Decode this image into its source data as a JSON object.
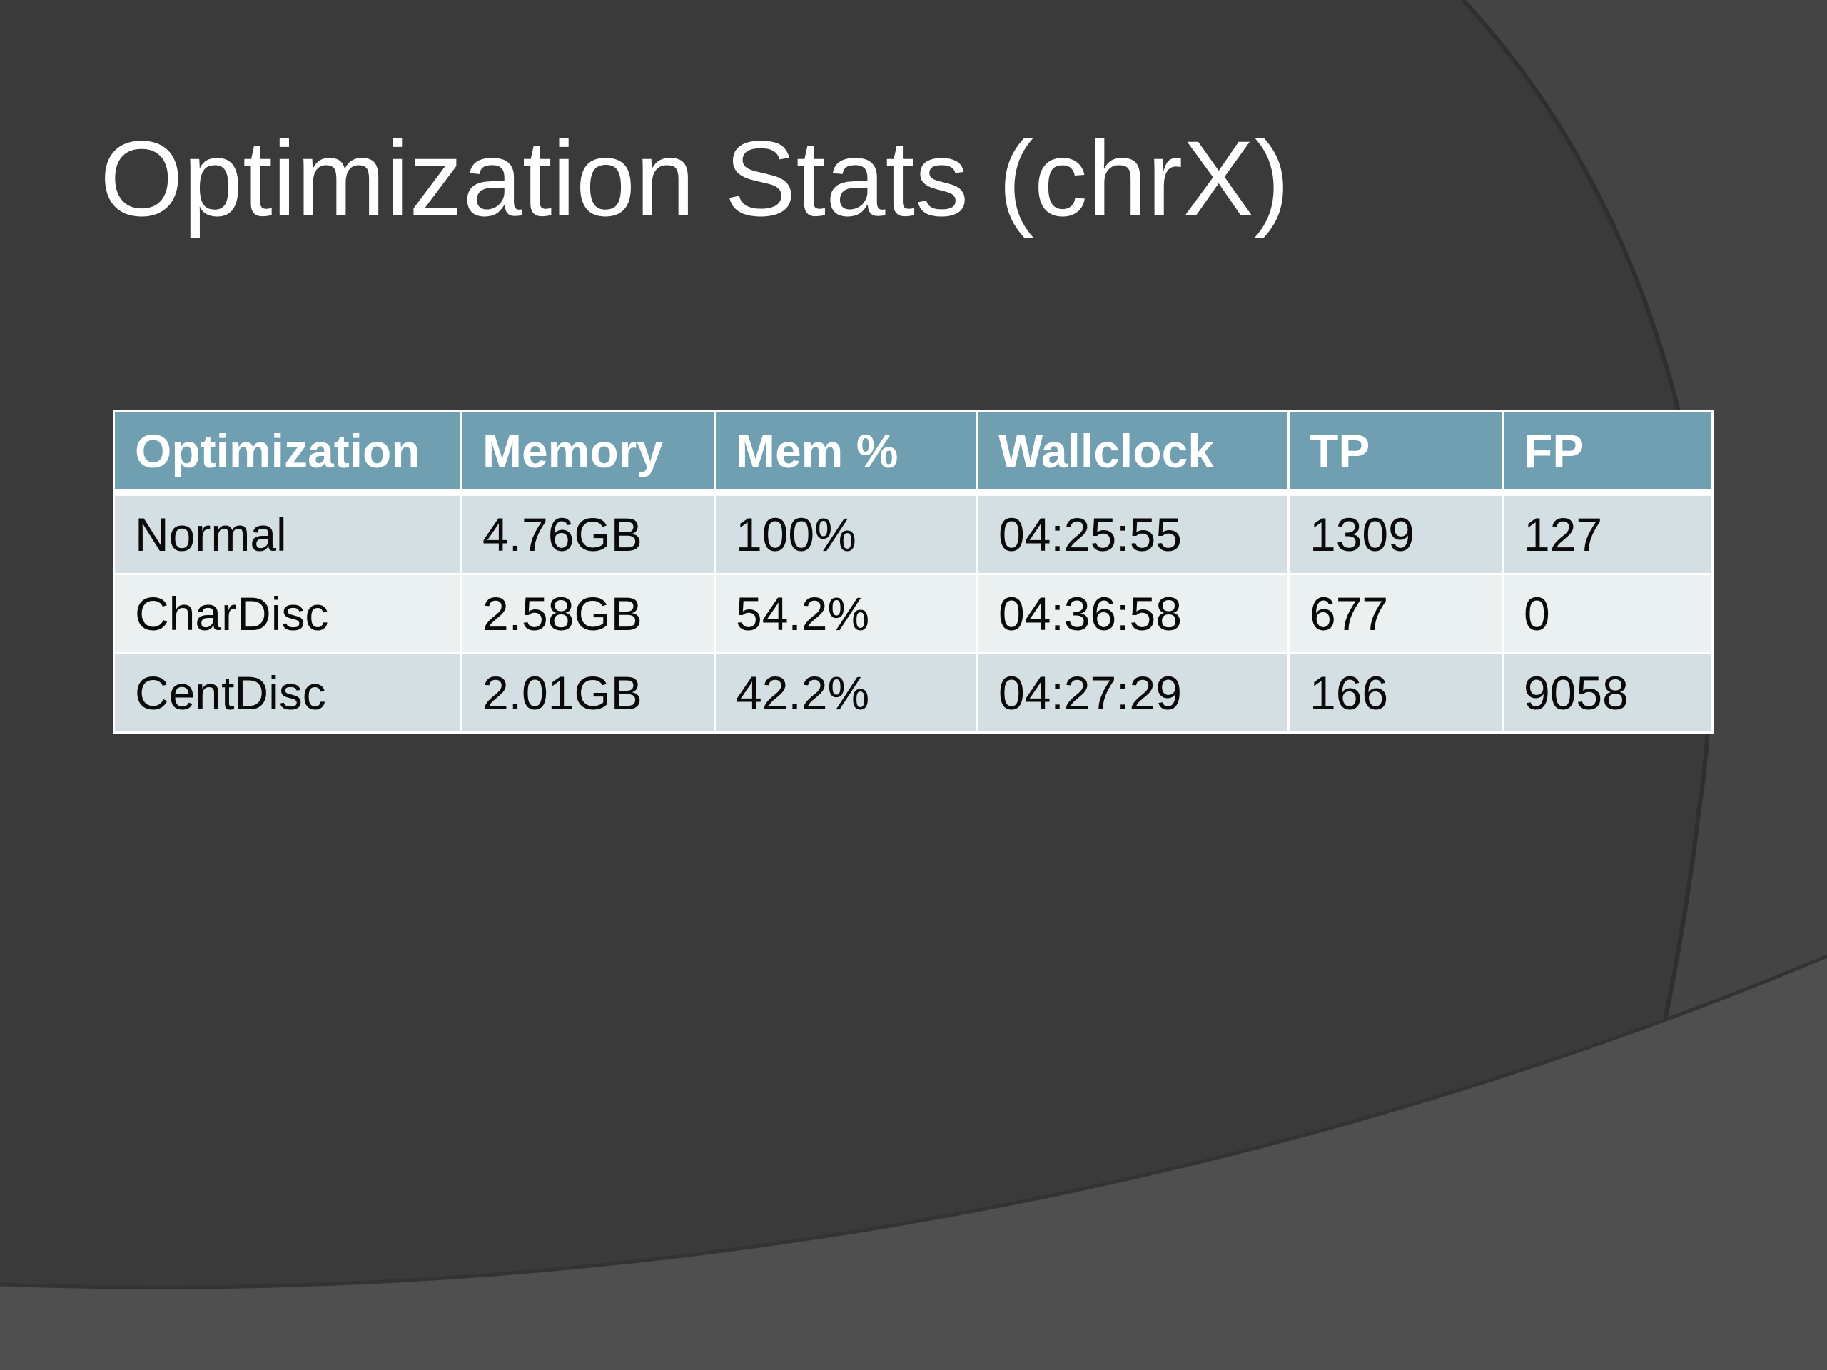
{
  "slide": {
    "title": "Optimization Stats (chrX)"
  },
  "colors": {
    "background": "#3a3a3a",
    "header_fill": "#6f9fb0",
    "row_band_dark": "#d3dfe2",
    "row_band_light": "#ebf0f1",
    "title_text": "#ffffff"
  },
  "table": {
    "headers": [
      "Optimization",
      "Memory",
      "Mem %",
      "Wallclock",
      "TP",
      "FP"
    ],
    "rows": [
      [
        "Normal",
        "4.76GB",
        "100%",
        "04:25:55",
        "1309",
        "127"
      ],
      [
        "CharDisc",
        "2.58GB",
        "54.2%",
        "04:36:58",
        "677",
        "0"
      ],
      [
        "CentDisc",
        "2.01GB",
        "42.2%",
        "04:27:29",
        "166",
        "9058"
      ]
    ]
  }
}
